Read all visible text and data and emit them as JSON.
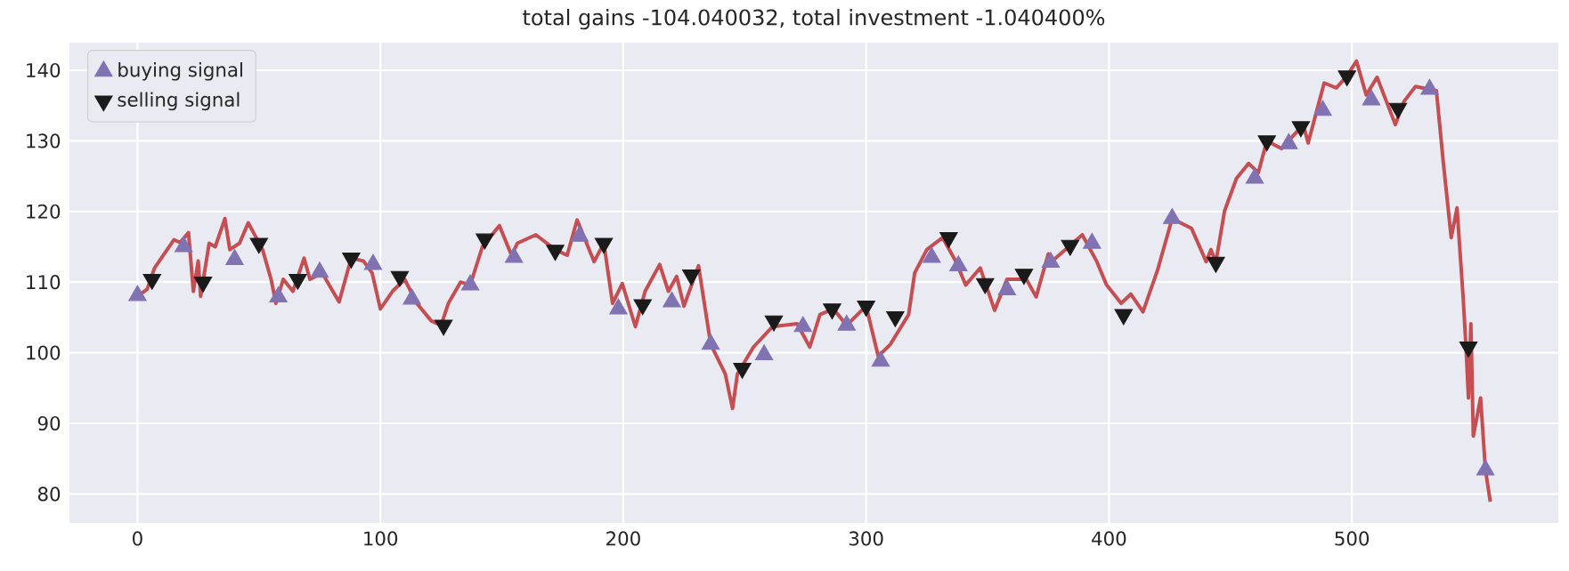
{
  "chart_data": {
    "type": "line",
    "title": "total gains -104.040032, total investment -1.040400%",
    "series": [
      {
        "color": "#c44e52",
        "x": [
          0,
          4,
          7,
          15,
          17.5,
          21,
          23,
          25,
          26,
          29.5,
          32,
          36,
          38,
          42,
          45.6,
          51.5,
          55,
          57,
          60,
          64,
          68.6,
          71,
          76,
          83,
          88,
          93,
          96.6,
          100,
          105,
          110,
          115,
          121,
          125,
          128,
          133,
          137,
          142,
          149,
          154,
          156.4,
          164,
          172,
          176.9,
          181,
          188,
          192,
          195.6,
          199.6,
          205,
          209,
          215,
          218.6,
          222,
          225,
          231,
          236,
          242,
          245,
          247,
          253.6,
          261.5,
          271.6,
          276.8,
          281,
          286.5,
          292,
          300,
          305,
          310,
          317.5,
          320,
          325,
          331.5,
          337,
          341,
          347,
          352.9,
          358,
          366,
          370,
          375,
          376,
          384,
          389,
          395,
          399,
          405,
          409,
          414,
          420,
          426,
          434,
          440,
          442,
          444,
          447.6,
          452.5,
          457.5,
          461.5,
          465,
          471,
          480,
          482,
          488.6,
          493.6,
          498,
          501.9,
          505.9,
          510.4,
          517.9,
          521.5,
          526.2,
          534.8,
          537.7,
          540.9,
          543.3,
          545.8,
          547,
          548,
          549,
          550,
          553,
          555,
          557
        ],
        "values": [
          108,
          109,
          112,
          116,
          115.6,
          117,
          108.7,
          113,
          108,
          115.5,
          115,
          119,
          114.6,
          115.5,
          118.4,
          114.6,
          110.4,
          107,
          110.4,
          108.7,
          113.4,
          110.4,
          111.3,
          107.2,
          113.4,
          113,
          111.3,
          106.2,
          108.7,
          110.4,
          107,
          104.5,
          103.9,
          107,
          110,
          109.6,
          115,
          118,
          113.8,
          115.5,
          116.7,
          114.6,
          113.8,
          118.8,
          112.9,
          115.5,
          107,
          109.8,
          103.7,
          108.7,
          112.5,
          108.7,
          110.8,
          106.6,
          112.3,
          101.2,
          97,
          92.1,
          97,
          100.8,
          103.7,
          104.1,
          100.8,
          105.4,
          106.2,
          103.9,
          106.6,
          99.5,
          101.2,
          105.4,
          111.3,
          114.6,
          116.3,
          112.9,
          109.6,
          112,
          106,
          110.4,
          110.4,
          107.9,
          114,
          112.8,
          115.2,
          116.7,
          112.9,
          109.6,
          107,
          108.3,
          105.8,
          111.7,
          119,
          117.6,
          112.9,
          114.6,
          112.8,
          120.1,
          124.7,
          126.8,
          125.5,
          130,
          128.9,
          132.3,
          129.7,
          138.2,
          137.5,
          139.2,
          141.3,
          136.5,
          139,
          132.3,
          135.6,
          137.7,
          137.1,
          126.8,
          116.3,
          120.5,
          107.9,
          100.8,
          93.6,
          104.1,
          88.2,
          93.6,
          83.4,
          78.9
        ]
      },
      {
        "type": "scatter",
        "name": "buying signal",
        "color": "#8172b2",
        "marker": "triangle",
        "x": [
          0,
          19,
          40,
          58,
          75,
          97,
          113,
          137,
          155,
          182,
          198,
          220,
          236,
          258,
          274,
          292,
          306,
          327,
          338,
          358,
          376,
          393,
          426,
          460,
          474,
          488,
          508,
          532,
          555
        ],
        "values": [
          108.1,
          115.0,
          113.2,
          107.9,
          111.4,
          112.5,
          107.6,
          109.6,
          113.5,
          116.5,
          106.2,
          107.2,
          101.2,
          99.7,
          103.7,
          103.9,
          98.8,
          113.5,
          112.3,
          108.9,
          112.8,
          115.5,
          119.0,
          124.7,
          129.6,
          134.3,
          135.8,
          137.3,
          83.4
        ]
      },
      {
        "type": "scatter",
        "name": "selling signal",
        "color": "#1a1a1a",
        "marker": "triangle_down",
        "x": [
          6,
          27,
          50,
          66,
          88,
          108,
          126,
          143,
          172,
          192,
          208,
          228,
          249,
          262,
          286,
          300,
          312,
          334,
          349,
          365,
          384,
          406,
          444,
          465,
          479,
          498,
          519,
          548
        ],
        "values": [
          110.4,
          110.0,
          115.5,
          110.4,
          113.4,
          110.8,
          103.9,
          116.1,
          114.5,
          115.5,
          106.8,
          111.0,
          97.8,
          104.5,
          106.2,
          106.6,
          105.1,
          116.3,
          109.8,
          111.1,
          115.2,
          105.4,
          112.8,
          130.0,
          132.0,
          139.2,
          134.6,
          100.8
        ]
      }
    ],
    "xlim": [
      -28,
      585
    ],
    "ylim": [
      75.9,
      143.9
    ],
    "xticks": [
      0,
      100,
      200,
      300,
      400,
      500
    ],
    "yticks": [
      80,
      90,
      100,
      110,
      120,
      130,
      140
    ],
    "grid": true,
    "legend": "top left"
  }
}
